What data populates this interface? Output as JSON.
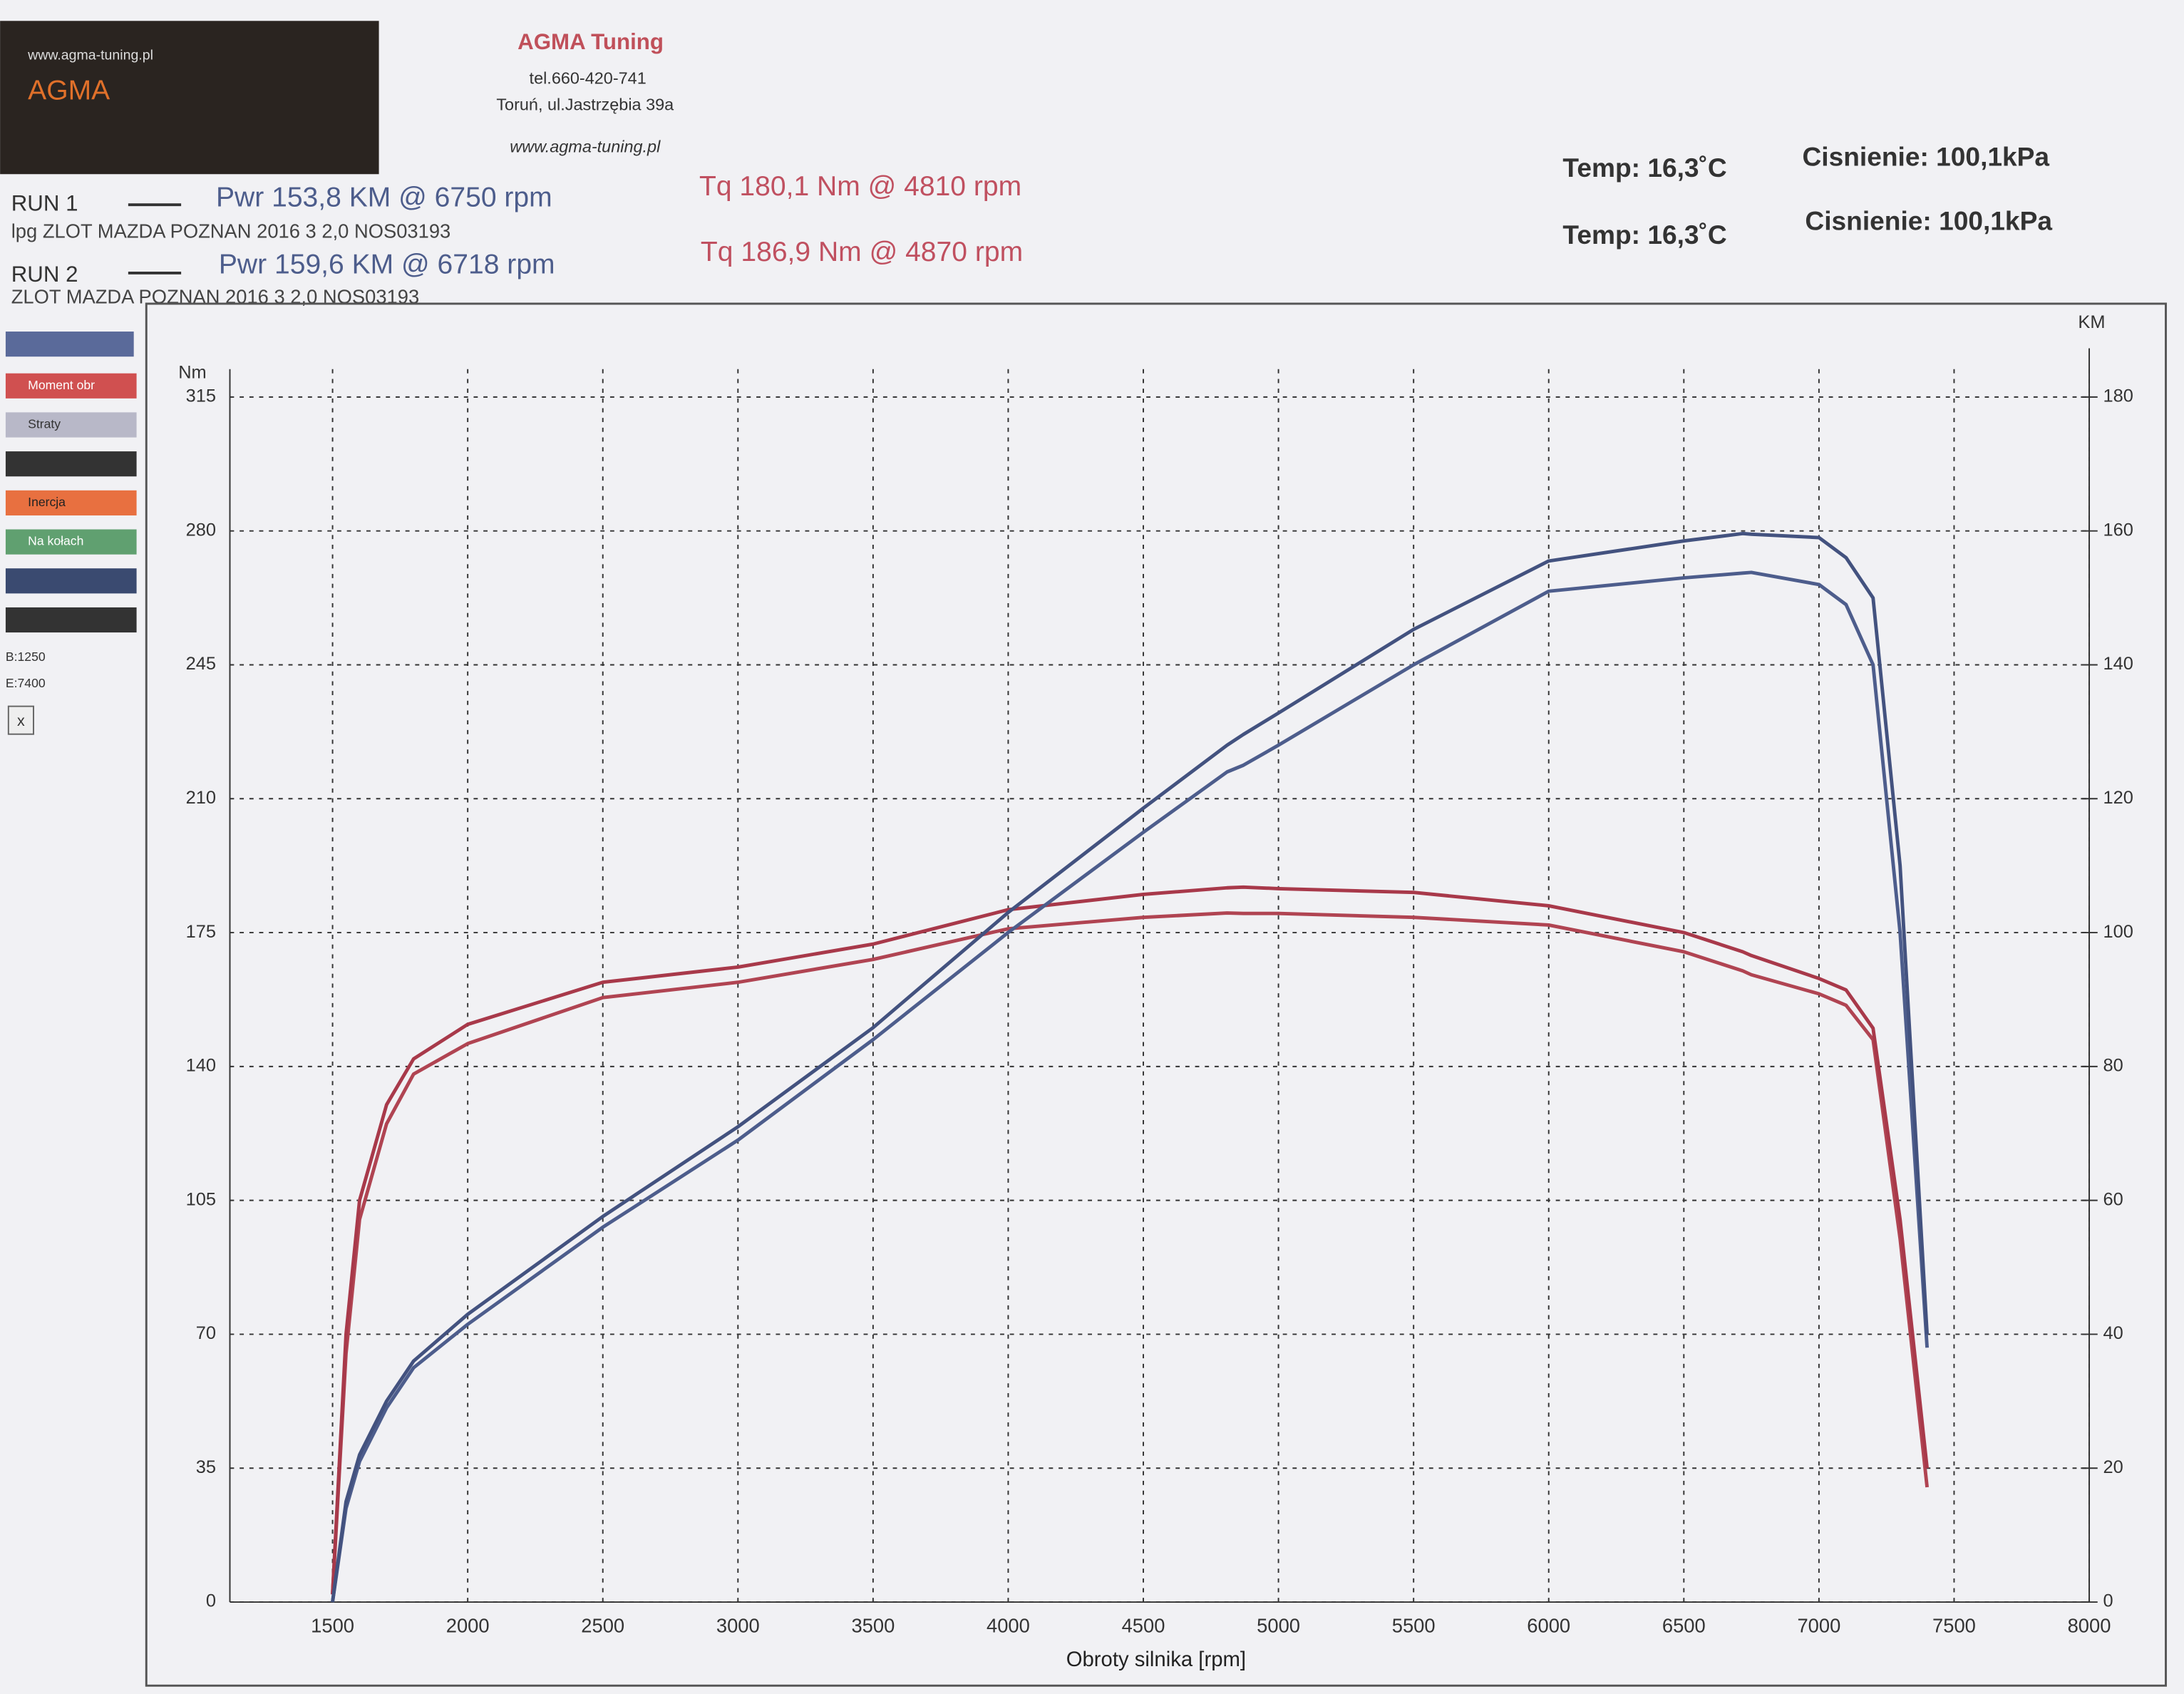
{
  "header": {
    "logo_url": "www.agma-tuning.pl",
    "logo_name": "AGMA",
    "company": "AGMA Tuning",
    "phone": "tel.660-420-741",
    "address": "Toruń, ul.Jastrzębia 39a",
    "website": "www.agma-tuning.pl"
  },
  "runs": [
    {
      "label": "RUN 1",
      "power": "Pwr 153,8 KM @ 6750 rpm",
      "torque": "Tq 180,1 Nm @ 4810 rpm",
      "description": "lpg ZLOT MAZDA POZNAN 2016 3 2,0 NOS03193",
      "temp": "Temp: 16,3˚C",
      "pressure": "Cisnienie: 100,1kPa"
    },
    {
      "label": "RUN 2",
      "power": "Pwr 159,6 KM @ 6718 rpm",
      "torque": "Tq 186,9 Nm @ 4870 rpm",
      "description": "ZLOT MAZDA POZNAN 2016 3 2,0 NOS03193",
      "temp": "Temp: 16,3˚C",
      "pressure": "Cisnienie: 100,1kPa"
    }
  ],
  "side_panel": {
    "options": [
      "Moment obr",
      "Straty",
      "Inercja",
      "Na kołach"
    ],
    "start": "B:1250",
    "end": "E:7400",
    "close": "x"
  },
  "chart_data": {
    "type": "line",
    "x_label": "Obroty silnika [rpm]",
    "y_label": "Nm",
    "y2_label": "KM",
    "x": [
      1500,
      1550,
      1600,
      1700,
      1800,
      2000,
      2500,
      3000,
      3500,
      4000,
      4500,
      4810,
      4870,
      5000,
      5500,
      6000,
      6500,
      6718,
      6750,
      7000,
      7100,
      7200,
      7300,
      7400
    ],
    "xlim": [
      1120,
      8000
    ],
    "xticks": [
      1500,
      2000,
      2500,
      3000,
      3500,
      4000,
      4500,
      5000,
      5500,
      6000,
      6500,
      7000,
      7500,
      8000
    ],
    "ylim": [
      0,
      315
    ],
    "yticks": [
      0,
      35,
      70,
      105,
      140,
      175,
      210,
      245,
      280,
      315
    ],
    "y2lim": [
      0,
      180
    ],
    "y2ticks": [
      0,
      20,
      40,
      60,
      80,
      100,
      120,
      140,
      160,
      180
    ],
    "grid": true,
    "series": [
      {
        "color": "#b04452",
        "values": [
          2,
          65,
          100,
          125,
          138,
          146,
          158,
          162,
          168,
          176,
          179,
          180.1,
          180,
          180,
          179,
          177,
          170,
          165,
          164,
          159,
          156,
          147,
          95,
          30
        ]
      },
      {
        "color": "#a8394a",
        "values": [
          2,
          70,
          105,
          130,
          142,
          151,
          162,
          166,
          172,
          181,
          185,
          186.7,
          186.9,
          186.5,
          185.5,
          182,
          175,
          170,
          169,
          163,
          160,
          150,
          100,
          35
        ]
      },
      {
        "color": "#4d5d8c",
        "axis": "y2",
        "values": [
          0,
          14,
          21,
          29,
          35,
          41.5,
          56,
          69,
          84,
          100,
          115,
          124,
          125,
          128,
          140,
          151,
          153,
          153.7,
          153.8,
          152,
          149,
          140,
          100,
          38
        ]
      },
      {
        "color": "#43527f",
        "axis": "y2",
        "values": [
          0,
          15,
          22,
          30,
          36,
          43,
          57.6,
          71,
          85.8,
          103,
          118.6,
          128,
          129.6,
          132.8,
          145.3,
          155.5,
          158.5,
          159.6,
          159.5,
          159,
          156,
          150,
          110,
          40
        ]
      }
    ]
  }
}
